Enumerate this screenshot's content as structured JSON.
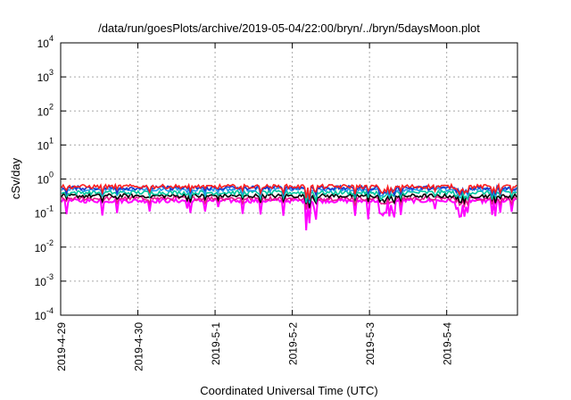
{
  "chart_data": {
    "type": "line",
    "title": "/data/run/goesPlots/archive/2019-05-04/22:00/bryn/../bryn/5daysMoon.plot",
    "xlabel": "Coordinated Universal Time (UTC)",
    "ylabel": "cSv/day",
    "yscale": "log",
    "ylim": [
      0.0001,
      10000
    ],
    "yticks": [
      {
        "base": "10",
        "exp": "4",
        "value": 10000
      },
      {
        "base": "10",
        "exp": "3",
        "value": 1000
      },
      {
        "base": "10",
        "exp": "2",
        "value": 100
      },
      {
        "base": "10",
        "exp": "1",
        "value": 10
      },
      {
        "base": "10",
        "exp": "0",
        "value": 1
      },
      {
        "base": "10",
        "exp": "-1",
        "value": 0.1
      },
      {
        "base": "10",
        "exp": "-2",
        "value": 0.01
      },
      {
        "base": "10",
        "exp": "-3",
        "value": 0.001
      },
      {
        "base": "10",
        "exp": "-4",
        "value": 0.0001
      }
    ],
    "xlim": [
      "2019-04-29",
      "2019-05-04T22:00"
    ],
    "xticks": [
      "2019-4-29",
      "2019-4-30",
      "2019-5-1",
      "2019-5-2",
      "2019-5-3",
      "2019-5-4"
    ],
    "grid": true,
    "series": [
      {
        "color": "#ff00ff",
        "typical_value": 0.23,
        "min_value": 0.05
      },
      {
        "color": "#e8198c",
        "typical_value": 0.27
      },
      {
        "color": "#000000",
        "typical_value": 0.32
      },
      {
        "color": "#00c8a0",
        "typical_value": 0.4
      },
      {
        "color": "#2299ee",
        "typical_value": 0.5
      },
      {
        "color": "#1a35c8",
        "typical_value": 0.55
      },
      {
        "color": "#ff2020",
        "typical_value": 0.6
      }
    ]
  }
}
